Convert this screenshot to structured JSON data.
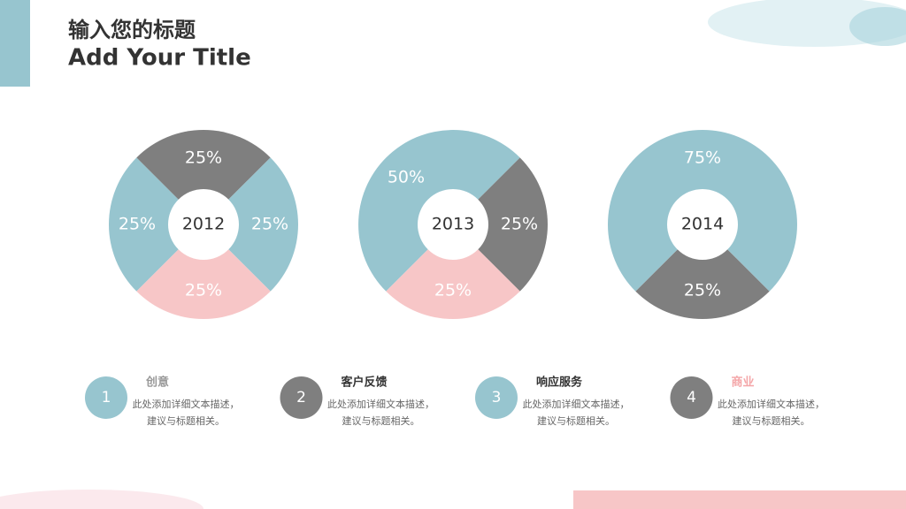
{
  "header": {
    "title_cn": "输入您的标题",
    "title_en": "Add Your Title"
  },
  "chart_data": [
    {
      "type": "pie",
      "title": "2012",
      "values": [
        25,
        25,
        25,
        25
      ],
      "value_labels": [
        "25%",
        "25%",
        "25%",
        "25%"
      ],
      "colors": [
        "#97c5cf",
        "#7f7f7f",
        "#97c5cf",
        "#f7c6c7"
      ]
    },
    {
      "type": "pie",
      "title": "2013",
      "values": [
        50,
        25,
        25
      ],
      "value_labels": [
        "50%",
        "25%",
        "25%"
      ],
      "colors": [
        "#97c5cf",
        "#7f7f7f",
        "#f7c6c7"
      ]
    },
    {
      "type": "pie",
      "title": "2014",
      "values": [
        25,
        75
      ],
      "value_labels": [
        "25%",
        "75%"
      ],
      "colors": [
        "#7f7f7f",
        "#97c5cf"
      ]
    }
  ],
  "items": [
    {
      "number": "1",
      "heading": "创意",
      "lines": [
        "此处添加详细文本描述，",
        "建议与标题相关。"
      ]
    },
    {
      "number": "2",
      "heading": "客户反馈",
      "lines": [
        "此处添加详细文本描述，",
        "建议与标题相关。"
      ]
    },
    {
      "number": "3",
      "heading": "响应服务",
      "lines": [
        "此处添加详细文本描述，",
        "建议与标题相关。"
      ]
    },
    {
      "number": "4",
      "heading": "商业",
      "lines": [
        "此处添加详细文本描述，",
        "建议与标题相关。"
      ]
    }
  ]
}
